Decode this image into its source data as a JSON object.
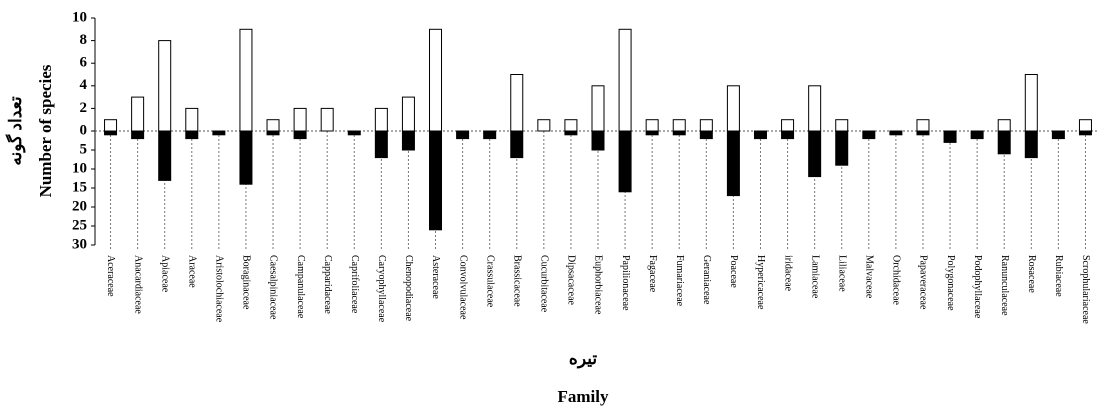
{
  "chart_data": {
    "type": "diverging-bar",
    "y_label": "Number of species",
    "y_label_fa": "تعداد گونه",
    "x_label": "Family",
    "x_label_fa": "تیره",
    "categories": [
      "Aceraceae",
      "Anacardiaceae",
      "Apiaceae",
      "Araceae",
      "Aristolochiaceae",
      "Boraginaceae",
      "Caesalpiniaceae",
      "Campanulaceae",
      "Capparidaceae",
      "Caprifoliaceae",
      "Caryophyllaceae",
      "Chenopodiaceae",
      "Asteraceae",
      "Convolvulaceae",
      "Crassulaceae",
      "Brassicaceae",
      "Cucurbitaceae",
      "Dipsacaceae",
      "Euphorbiaceae",
      "Papilionaceae",
      "Fagaceae",
      "Fumariaceae",
      "Geraniaceae",
      "Poaceae",
      "Hypericaceae",
      "iridaceae",
      "Lamiaceae",
      "Liliaceae",
      "Malvaceae",
      "Orchidaceae",
      "Papaveraceae",
      "Polygonaceae",
      "Podophyllaceae",
      "Ranunculaceae",
      "Rosaceae",
      "Rubiaceae",
      "Scrophulariaceae"
    ],
    "series": [
      {
        "color": "#ffffff",
        "axis": "y",
        "values": [
          1,
          3,
          8,
          2,
          0,
          9,
          1,
          2,
          2,
          0,
          2,
          3,
          9,
          0,
          0,
          5,
          1,
          1,
          4,
          9,
          1,
          1,
          1,
          4,
          0,
          1,
          4,
          1,
          0,
          0,
          1,
          0,
          0,
          1,
          5,
          0,
          1
        ]
      },
      {
        "color": "#000000",
        "axis": "y2",
        "values": [
          1,
          2,
          13,
          2,
          1,
          14,
          1,
          2,
          0,
          1,
          7,
          5,
          26,
          2,
          2,
          7,
          0,
          1,
          5,
          16,
          1,
          1,
          2,
          17,
          2,
          2,
          12,
          9,
          2,
          1,
          1,
          3,
          2,
          6,
          7,
          2,
          1
        ]
      }
    ],
    "ylim": [
      0,
      10
    ],
    "yticks": [
      0,
      2,
      4,
      6,
      8,
      10
    ],
    "y2lim": [
      0,
      30
    ],
    "y2ticks": [
      5,
      10,
      15,
      20,
      25,
      30
    ],
    "y2_direction": "down"
  }
}
